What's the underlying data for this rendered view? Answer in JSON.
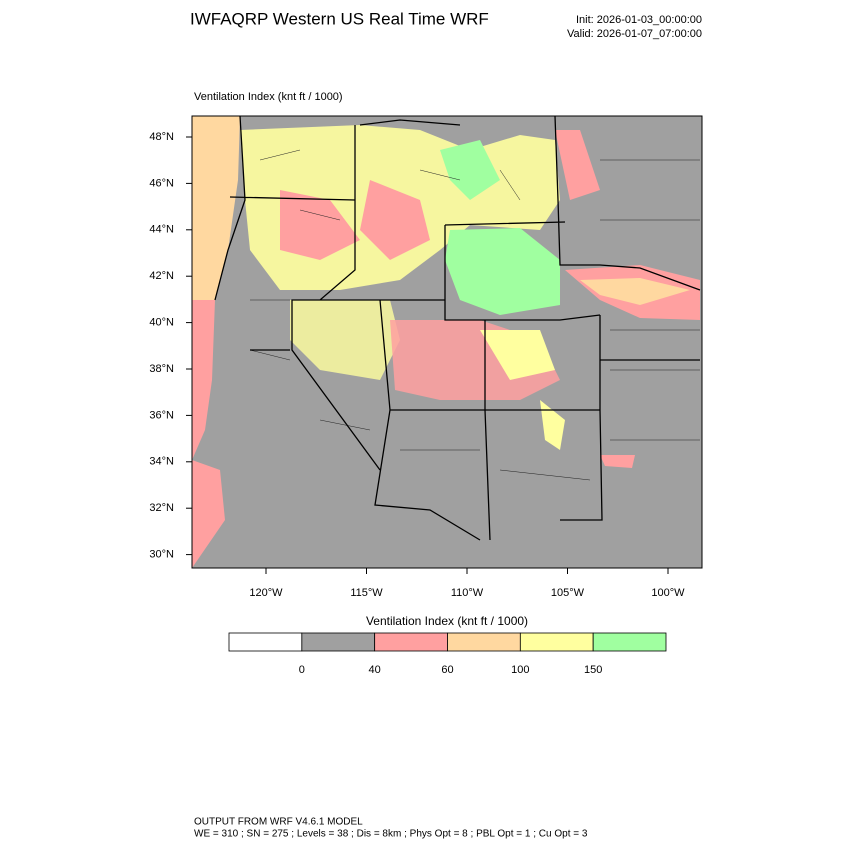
{
  "header": {
    "title": "IWFAQRP Western US Real Time WRF",
    "init": "Init: 2026-01-03_00:00:00",
    "valid": "Valid: 2026-01-07_07:00:00"
  },
  "map": {
    "label": "Ventilation Index   (knt ft / 1000)",
    "lat_labels": [
      "48°N",
      "46°N",
      "44°N",
      "42°N",
      "40°N",
      "38°N",
      "36°N",
      "34°N",
      "32°N",
      "30°N"
    ],
    "lon_labels": [
      "120°W",
      "115°W",
      "110°W",
      "105°W",
      "100°W"
    ]
  },
  "legend": {
    "title": "Ventilation Index   (knt ft / 1000)",
    "colors": [
      "#ffffff",
      "#a0a0a0",
      "#ffa0a0",
      "#ffd8a0",
      "#ffff9f",
      "#a0ffa0"
    ],
    "labels": [
      "0",
      "40",
      "60",
      "100",
      "150"
    ]
  },
  "footer": {
    "line1": "OUTPUT FROM WRF V4.6.1 MODEL",
    "line2": "WE = 310 ; SN = 275 ; Levels = 38 ; Dis = 8km ; Phys Opt = 8 ; PBL Opt = 1 ; Cu Opt = 3"
  }
}
